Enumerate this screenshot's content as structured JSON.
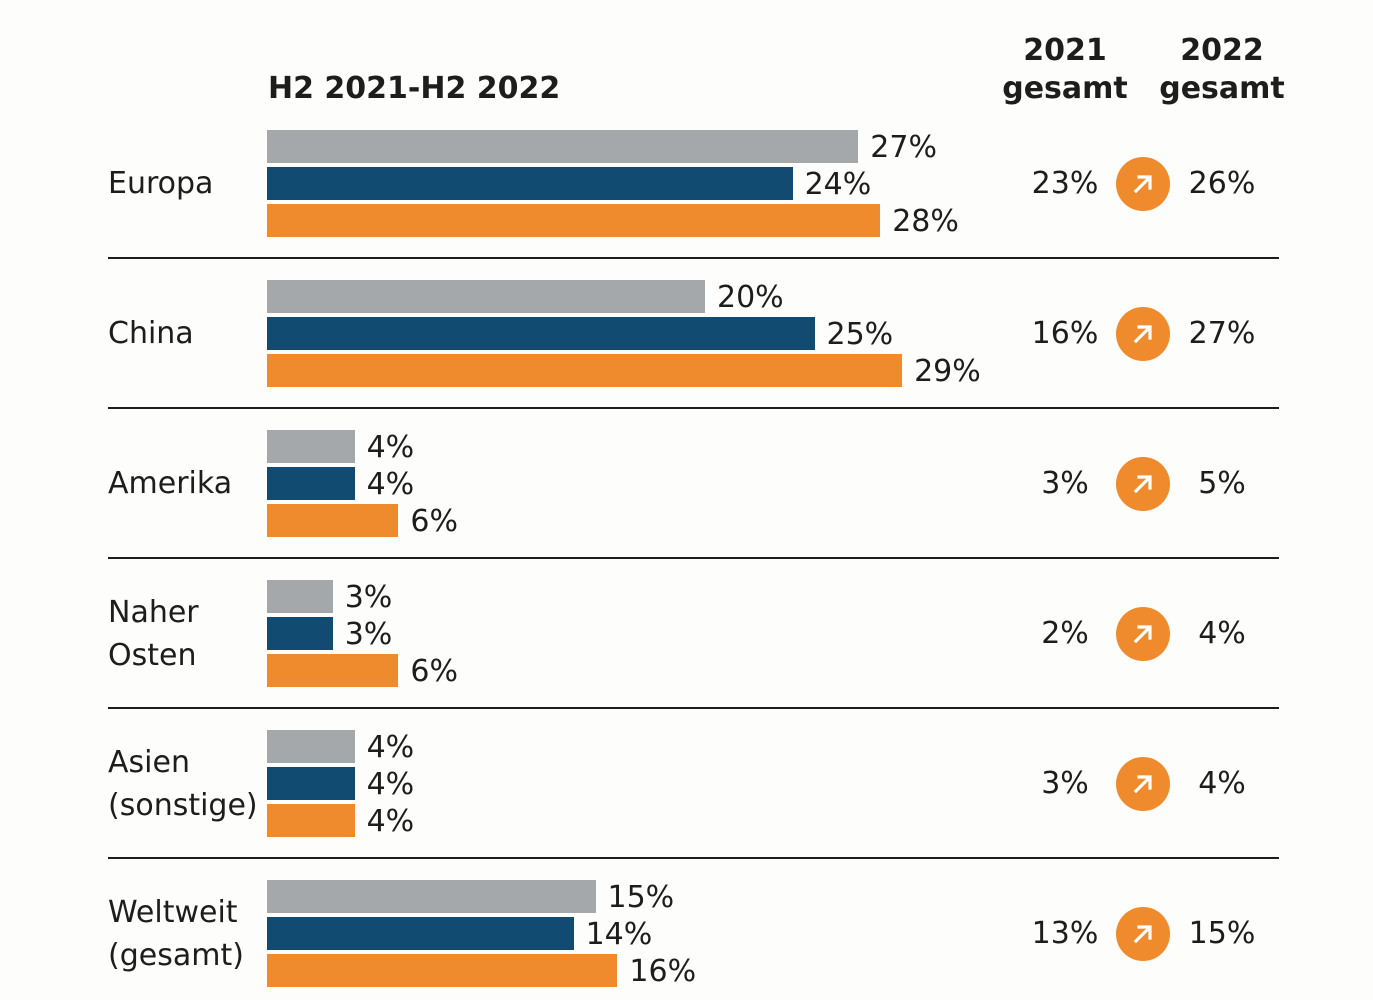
{
  "chart_data": {
    "type": "bar",
    "orientation": "horizontal",
    "title": "H2 2021-H2 2022",
    "categories": [
      [
        "Europa"
      ],
      [
        "China"
      ],
      [
        "Amerika"
      ],
      [
        "Naher",
        "Osten"
      ],
      [
        "Asien",
        "(sonstige)"
      ],
      [
        "Weltweit",
        "(gesamt)"
      ]
    ],
    "series": [
      {
        "name": "series-grey",
        "color": "#a5a8ab",
        "values": [
          27,
          20,
          4,
          3,
          4,
          15
        ]
      },
      {
        "name": "series-blue",
        "color": "#124b72",
        "values": [
          24,
          25,
          4,
          3,
          4,
          14
        ]
      },
      {
        "name": "series-orange",
        "color": "#ef8b2c",
        "values": [
          28,
          29,
          6,
          6,
          4,
          16
        ]
      }
    ],
    "value_suffix": "%",
    "xlim": [
      0,
      30
    ],
    "totals": {
      "col_2021_label": [
        "2021",
        "gesamt"
      ],
      "col_2022_label": [
        "2022",
        "gesamt"
      ],
      "values_2021": [
        23,
        16,
        3,
        2,
        3,
        13
      ],
      "values_2022": [
        26,
        27,
        5,
        4,
        4,
        15
      ],
      "trend_icon": "arrow-up-right-icon"
    }
  },
  "colors": {
    "grey": "#a5a8ab",
    "blue": "#124b72",
    "orange": "#ef8b2c",
    "text": "#1d1d1b"
  }
}
